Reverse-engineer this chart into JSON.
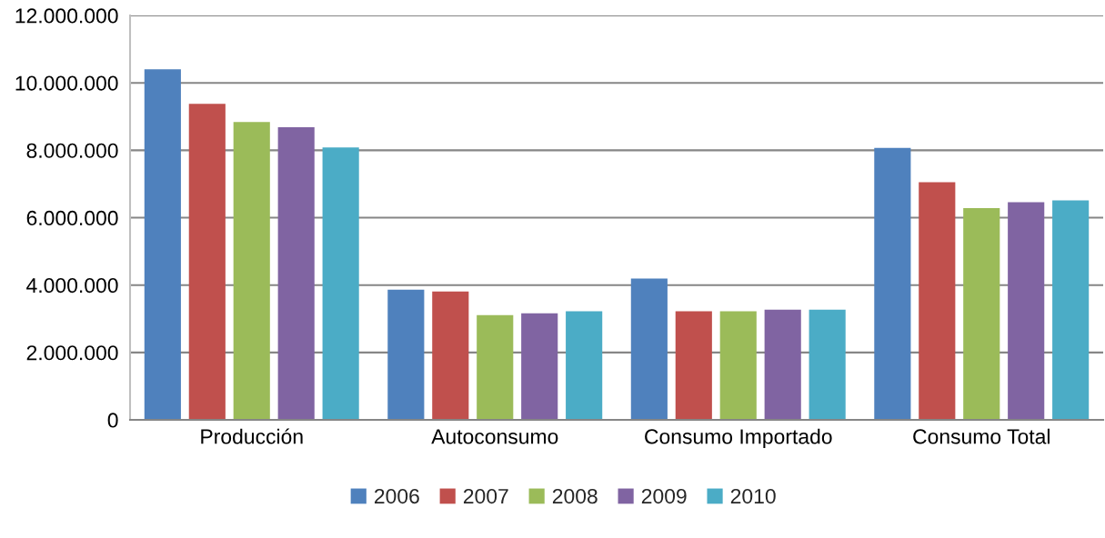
{
  "chart_data": {
    "type": "bar",
    "categories": [
      "Producción",
      "Autoconsumo",
      "Consumo Importado",
      "Consumo Total"
    ],
    "series": [
      {
        "name": "2006",
        "color": "#4f81bd",
        "values": [
          10400000,
          3860000,
          4190000,
          8070000
        ]
      },
      {
        "name": "2007",
        "color": "#c0504d",
        "values": [
          9380000,
          3810000,
          3220000,
          7050000
        ]
      },
      {
        "name": "2008",
        "color": "#9bbb59",
        "values": [
          8840000,
          3110000,
          3220000,
          6280000
        ]
      },
      {
        "name": "2009",
        "color": "#8064a2",
        "values": [
          8680000,
          3160000,
          3270000,
          6460000
        ]
      },
      {
        "name": "2010",
        "color": "#4bacc6",
        "values": [
          8080000,
          3220000,
          3270000,
          6510000
        ]
      }
    ],
    "ylim": [
      0,
      12000000
    ],
    "yticks": [
      0,
      {
        "value": 2000000,
        "label": "2.000.000"
      },
      {
        "value": 4000000,
        "label": "4.000.000"
      },
      {
        "value": 6000000,
        "label": "6.000.000"
      },
      {
        "value": 8000000,
        "label": "8.000.000"
      },
      {
        "value": 10000000,
        "label": "10.000.000"
      },
      {
        "value": 12000000,
        "label": "12.000.000"
      }
    ],
    "grid": "y",
    "legend": "bottom"
  }
}
